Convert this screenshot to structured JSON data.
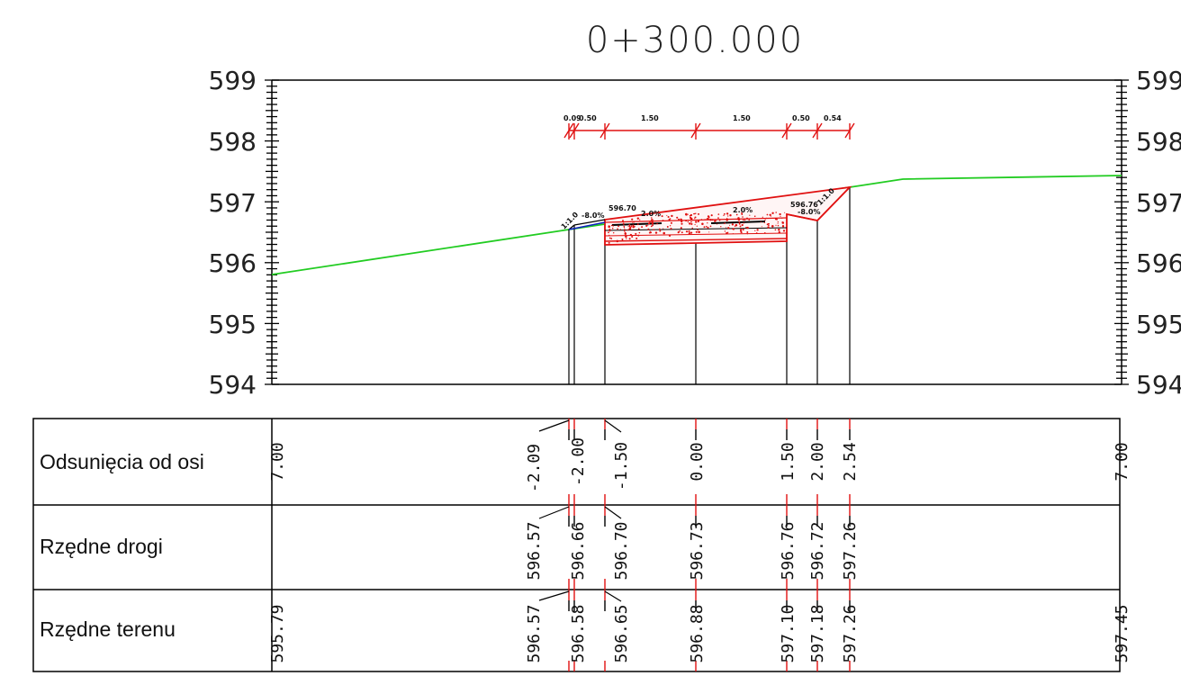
{
  "title": "0+300.000",
  "elevation_axis": {
    "labels": [
      "599",
      "598",
      "597",
      "596",
      "595",
      "594"
    ]
  },
  "dimension_labels": [
    "0.09",
    "0.50",
    "1.50",
    "1.50",
    "0.50",
    "0.54"
  ],
  "section_annotations": {
    "left_slope": "1:1.0",
    "left_slope_pct": "-8.0%",
    "left_edge_elev": "596.70",
    "left_lane_pct": "2.0%",
    "right_lane_pct": "2.0%",
    "right_edge_elev": "596.76",
    "right_slope_pct": "-8.0%",
    "right_slope": "1:1.0"
  },
  "table": {
    "rows": [
      {
        "label": "Odsunięcia od osi"
      },
      {
        "label": "Rzędne drogi"
      },
      {
        "label": "Rzędne terenu"
      }
    ],
    "offsets": [
      "7.00",
      "-2.09",
      "-2.00",
      "-1.50",
      "0.00",
      "1.50",
      "2.00",
      "2.54",
      "7.00"
    ],
    "road_elevations": [
      "596.57",
      "596.66",
      "596.70",
      "596.73",
      "596.76",
      "596.72",
      "597.26"
    ],
    "terrain_elevations": [
      "595.79",
      "596.57",
      "596.58",
      "596.65",
      "596.88",
      "597.10",
      "597.18",
      "597.26",
      "597.45"
    ]
  },
  "colors": {
    "terrain": "#22cc22",
    "road": "#e01010",
    "slope_left": "#1020c0",
    "lines": "#000000"
  }
}
